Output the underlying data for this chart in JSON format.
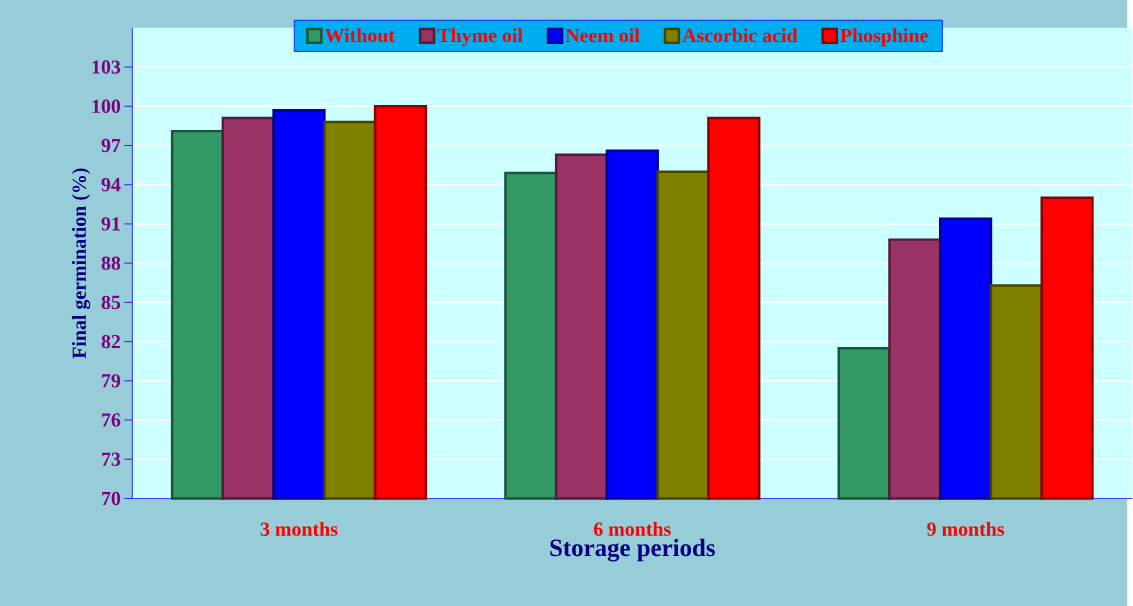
{
  "chart_data": {
    "type": "bar",
    "xlabel": "Storage periods",
    "ylabel": "Final germination (%)",
    "categories": [
      "3 months",
      "6 months",
      "9 months"
    ],
    "series": [
      {
        "name": "Without",
        "color": "#339966",
        "values": [
          98.1,
          94.9,
          81.5
        ]
      },
      {
        "name": "Thyme oil",
        "color": "#993366",
        "values": [
          99.1,
          96.3,
          89.8
        ]
      },
      {
        "name": "Neem oil",
        "color": "#0000ff",
        "values": [
          99.7,
          96.6,
          91.4
        ]
      },
      {
        "name": "Ascorbic acid",
        "color": "#808000",
        "values": [
          98.8,
          95.0,
          86.3
        ]
      },
      {
        "name": "Phosphine",
        "color": "#ff0000",
        "values": [
          100,
          99.1,
          93.0
        ]
      }
    ],
    "ylim": [
      70,
      106
    ],
    "yticks": [
      70,
      73,
      76,
      79,
      82,
      85,
      88,
      91,
      94,
      97,
      100,
      103
    ],
    "grid": "y",
    "legend": "top"
  }
}
